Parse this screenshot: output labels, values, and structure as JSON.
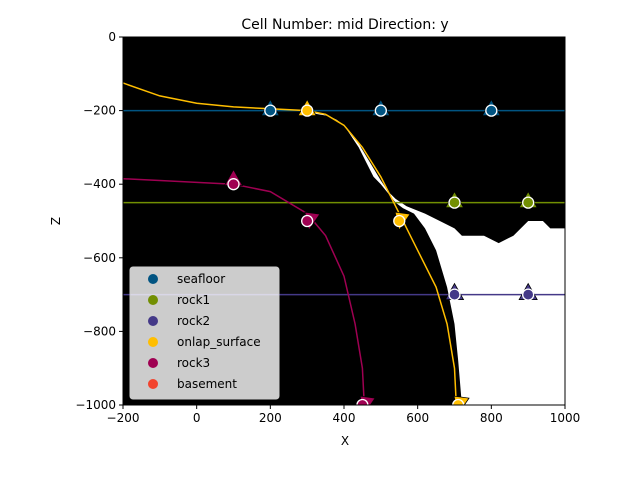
{
  "chart_data": {
    "type": "scatter",
    "title": "Cell Number: mid Direction: y",
    "xlabel": "X",
    "ylabel": "Z",
    "xlim": [
      -200,
      1000
    ],
    "ylim": [
      -1000,
      0
    ],
    "xticks": [
      -200,
      0,
      200,
      400,
      600,
      800,
      1000
    ],
    "yticks": [
      0,
      -200,
      -400,
      -600,
      -800,
      -1000
    ],
    "xtick_labels": [
      "−200",
      "0",
      "200",
      "400",
      "600",
      "800",
      "1000"
    ],
    "ytick_labels": [
      "0",
      "−200",
      "−400",
      "−600",
      "−800",
      "−1000"
    ],
    "background": {
      "fill": "#000000",
      "white_region": [
        [
          280,
          -200
        ],
        [
          300,
          -205
        ],
        [
          330,
          -210
        ],
        [
          360,
          -215
        ],
        [
          380,
          -225
        ],
        [
          400,
          -240
        ],
        [
          420,
          -270
        ],
        [
          440,
          -300
        ],
        [
          460,
          -340
        ],
        [
          480,
          -380
        ],
        [
          500,
          -400
        ],
        [
          520,
          -425
        ],
        [
          540,
          -450
        ],
        [
          560,
          -465
        ],
        [
          590,
          -480
        ],
        [
          620,
          -520
        ],
        [
          650,
          -580
        ],
        [
          680,
          -680
        ],
        [
          700,
          -780
        ],
        [
          710,
          -880
        ],
        [
          720,
          -1000
        ],
        [
          1000,
          -1000
        ],
        [
          1000,
          -520
        ],
        [
          960,
          -520
        ],
        [
          940,
          -500
        ],
        [
          900,
          -500
        ],
        [
          880,
          -520
        ],
        [
          860,
          -540
        ],
        [
          820,
          -560
        ],
        [
          780,
          -540
        ],
        [
          720,
          -540
        ],
        [
          700,
          -520
        ],
        [
          660,
          -500
        ],
        [
          620,
          -480
        ],
        [
          570,
          -460
        ],
        [
          540,
          -440
        ],
        [
          520,
          -420
        ],
        [
          500,
          -390
        ],
        [
          470,
          -340
        ],
        [
          440,
          -290
        ],
        [
          400,
          -240
        ],
        [
          370,
          -220
        ],
        [
          330,
          -205
        ],
        [
          280,
          -200
        ]
      ]
    },
    "legend": {
      "placement": "lower-left",
      "entries": [
        {
          "name": "seafloor",
          "color": "#015482"
        },
        {
          "name": "rock1",
          "color": "#728F02"
        },
        {
          "name": "rock2",
          "color": "#443988"
        },
        {
          "name": "onlap_surface",
          "color": "#FFBE00"
        },
        {
          "name": "rock3",
          "color": "#9F0052"
        },
        {
          "name": "basement",
          "color": "#F2442E"
        }
      ]
    },
    "series": [
      {
        "name": "seafloor",
        "color": "#015482",
        "line": [
          [
            -200,
            -200
          ],
          [
            1000,
            -200
          ]
        ],
        "points": [
          [
            200,
            -200
          ],
          [
            500,
            -200
          ],
          [
            800,
            -200
          ]
        ],
        "orientations": [
          [
            200,
            -200,
            "up"
          ],
          [
            500,
            -200,
            "up"
          ],
          [
            800,
            -200,
            "up"
          ]
        ]
      },
      {
        "name": "rock1",
        "color": "#728F02",
        "line": [
          [
            -200,
            -450
          ],
          [
            1000,
            -450
          ]
        ],
        "points": [
          [
            700,
            -450
          ],
          [
            900,
            -450
          ]
        ],
        "orientations": [
          [
            700,
            -450,
            "up"
          ],
          [
            900,
            -450,
            "up"
          ]
        ]
      },
      {
        "name": "rock2",
        "color": "#443988",
        "line": [
          [
            -200,
            -700
          ],
          [
            1000,
            -700
          ]
        ],
        "points": [
          [
            700,
            -700
          ],
          [
            900,
            -700
          ]
        ],
        "orientations": [
          [
            700,
            -700,
            "up"
          ],
          [
            900,
            -700,
            "up"
          ]
        ]
      },
      {
        "name": "onlap_surface",
        "color": "#FFBE00",
        "line": [
          [
            -200,
            -125
          ],
          [
            -100,
            -160
          ],
          [
            0,
            -180
          ],
          [
            100,
            -190
          ],
          [
            200,
            -195
          ],
          [
            300,
            -200
          ],
          [
            350,
            -210
          ],
          [
            400,
            -240
          ],
          [
            450,
            -300
          ],
          [
            500,
            -380
          ],
          [
            550,
            -480
          ],
          [
            600,
            -580
          ],
          [
            650,
            -680
          ],
          [
            680,
            -780
          ],
          [
            700,
            -900
          ],
          [
            705,
            -1000
          ]
        ],
        "points": [
          [
            300,
            -200
          ],
          [
            550,
            -500
          ],
          [
            710,
            -1000
          ]
        ],
        "orientations": [
          [
            300,
            -200,
            "up"
          ],
          [
            555,
            -495,
            "down"
          ],
          [
            715,
            -995,
            "down"
          ]
        ]
      },
      {
        "name": "rock3",
        "color": "#9F0052",
        "line": [
          [
            -200,
            -385
          ],
          [
            -100,
            -390
          ],
          [
            0,
            -395
          ],
          [
            100,
            -400
          ],
          [
            200,
            -420
          ],
          [
            300,
            -480
          ],
          [
            350,
            -540
          ],
          [
            400,
            -650
          ],
          [
            430,
            -780
          ],
          [
            450,
            -900
          ],
          [
            455,
            -1000
          ]
        ],
        "points": [
          [
            100,
            -400
          ],
          [
            300,
            -500
          ],
          [
            450,
            -1000
          ]
        ],
        "orientations": [
          [
            100,
            -390,
            "up"
          ],
          [
            310,
            -495,
            "down"
          ],
          [
            460,
            -995,
            "down"
          ]
        ]
      },
      {
        "name": "basement",
        "color": "#F2442E",
        "line": [],
        "points": [],
        "orientations": []
      }
    ]
  }
}
